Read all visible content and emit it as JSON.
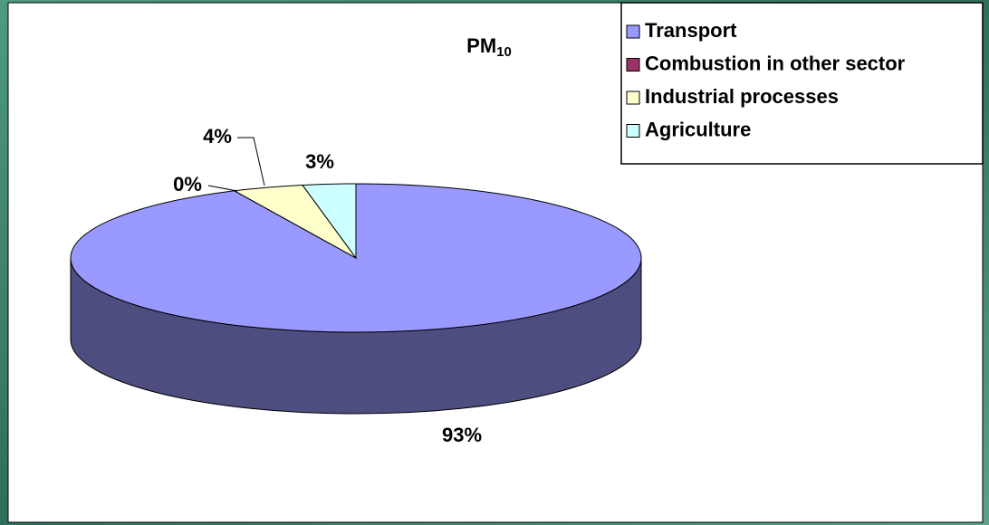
{
  "chart_data": {
    "type": "pie",
    "title": "PM10",
    "categories": [
      "Transport",
      "Combustion in other sector",
      "Industrial processes",
      "Agriculture"
    ],
    "values": [
      93,
      0,
      4,
      3
    ],
    "value_labels": [
      "93%",
      "0%",
      "4%",
      "3%"
    ],
    "colors": [
      "#9999ff",
      "#993366",
      "#ffffcc",
      "#ccffff"
    ],
    "legend": "top-right"
  }
}
